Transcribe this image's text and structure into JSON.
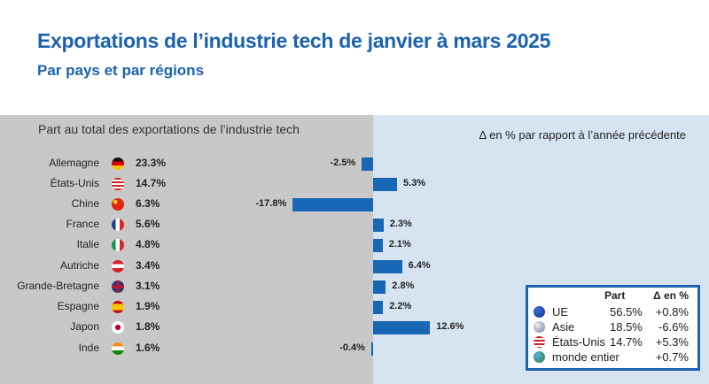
{
  "chart_data": {
    "type": "bar",
    "title": "Exportations de l’industrie tech de janvier à mars 2025",
    "subtitle": "Par pays et par régions",
    "left_header": "Part au total des exportations de l’industrie tech",
    "right_header": "Δ en % par rapport à l’année précédente",
    "categories": [
      "Allemagne",
      "États-Unis",
      "Chine",
      "France",
      "Italie",
      "Autriche",
      "Grande-Bretagne",
      "Espagne",
      "Japon",
      "Inde"
    ],
    "shares": [
      "23.3%",
      "14.7%",
      "6.3%",
      "5.6%",
      "4.8%",
      "3.4%",
      "3.1%",
      "1.9%",
      "1.8%",
      "1.6%"
    ],
    "values": [
      -2.5,
      5.3,
      -17.8,
      2.3,
      2.1,
      6.4,
      2.8,
      2.2,
      12.6,
      -0.4
    ],
    "value_labels": [
      "-2.5%",
      "5.3%",
      "-17.8%",
      "2.3%",
      "2.1%",
      "6.4%",
      "2.8%",
      "2.2%",
      "12.6%",
      "-0.4%"
    ],
    "flags": [
      "germany",
      "usa",
      "china",
      "france",
      "italy",
      "austria",
      "uk",
      "spain",
      "japan",
      "india"
    ],
    "bar_color": "#1767b4",
    "legend": {
      "col_part": "Part",
      "col_delta": "Δ en %",
      "rows": [
        {
          "name": "UE",
          "part": "56.5%",
          "delta": "+0.8%",
          "icon": "eu-globe"
        },
        {
          "name": "Asie",
          "part": "18.5%",
          "delta": "-6.6%",
          "icon": "asia-globe"
        },
        {
          "name": "États-Unis",
          "part": "14.7%",
          "delta": "+5.3%",
          "icon": "usa-flag"
        },
        {
          "name": "monde entier",
          "part": "",
          "delta": "+0.7%",
          "icon": "world-globe"
        }
      ]
    }
  }
}
